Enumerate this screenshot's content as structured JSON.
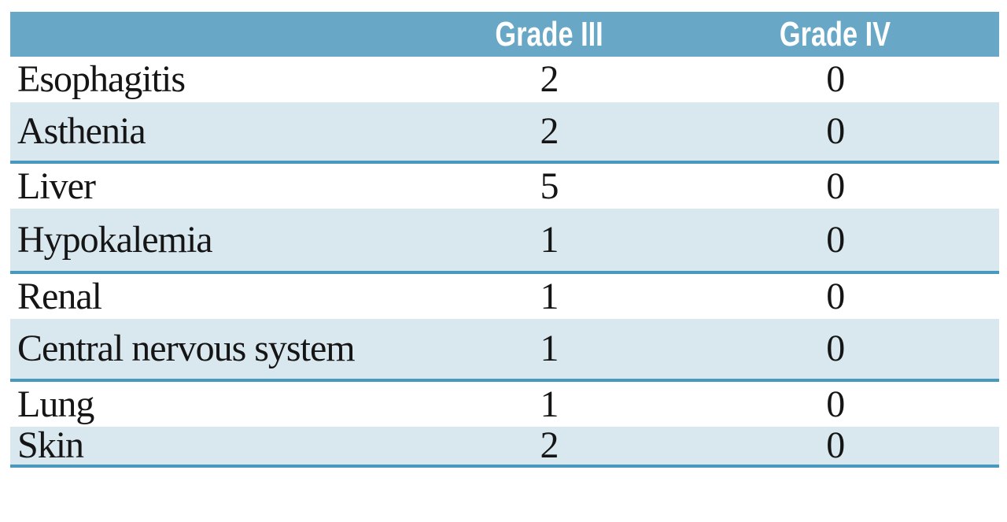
{
  "table": {
    "header": {
      "col1": "",
      "col2": "Grade III",
      "col3": "Grade IV"
    },
    "rows": [
      {
        "label": "Esophagitis",
        "grade_iii": "2",
        "grade_iv": "0"
      },
      {
        "label": "Asthenia",
        "grade_iii": "2",
        "grade_iv": "0"
      },
      {
        "label": "Liver",
        "grade_iii": "5",
        "grade_iv": "0"
      },
      {
        "label": "Hypokalemia",
        "grade_iii": "1",
        "grade_iv": "0"
      },
      {
        "label": "Renal",
        "grade_iii": "1",
        "grade_iv": "0"
      },
      {
        "label": "Central nervous system",
        "grade_iii": "1",
        "grade_iv": "0"
      },
      {
        "label": "Lung",
        "grade_iii": "1",
        "grade_iv": "0"
      },
      {
        "label": "Skin",
        "grade_iii": "2",
        "grade_iv": "0"
      }
    ],
    "colors": {
      "header_bg": "#68a8c6",
      "alt_row_bg": "#d9e8ef",
      "row_rule": "#4899bd",
      "header_text": "#ffffff",
      "body_text": "#151515",
      "page_bg": "#ffffff"
    }
  }
}
